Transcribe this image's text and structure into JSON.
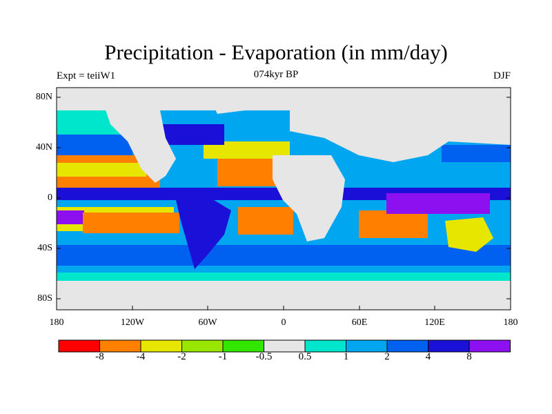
{
  "header": {
    "title": "Precipitation - Evaporation (in mm/day)",
    "subtitle": "074kyr BP",
    "left_label": "Expt = teiiW1",
    "right_label": "DJF"
  },
  "map": {
    "lat_ticks": [
      "80N",
      "40N",
      "0",
      "40S",
      "80S"
    ],
    "lon_ticks": [
      "180",
      "120W",
      "60W",
      "0",
      "60E",
      "120E",
      "180"
    ],
    "land_color": "#e6e6e6"
  },
  "colorbar": {
    "labels": [
      "-8",
      "-4",
      "-2",
      "-1",
      "-0.5",
      "0.5",
      "1",
      "2",
      "4",
      "8"
    ],
    "colors": [
      "#ff0000",
      "#ff8000",
      "#e6e600",
      "#99e600",
      "#33e600",
      "#e6e6e6",
      "#00e6cc",
      "#00a6f0",
      "#0060f0",
      "#1a10d8",
      "#8c10f0"
    ]
  }
}
